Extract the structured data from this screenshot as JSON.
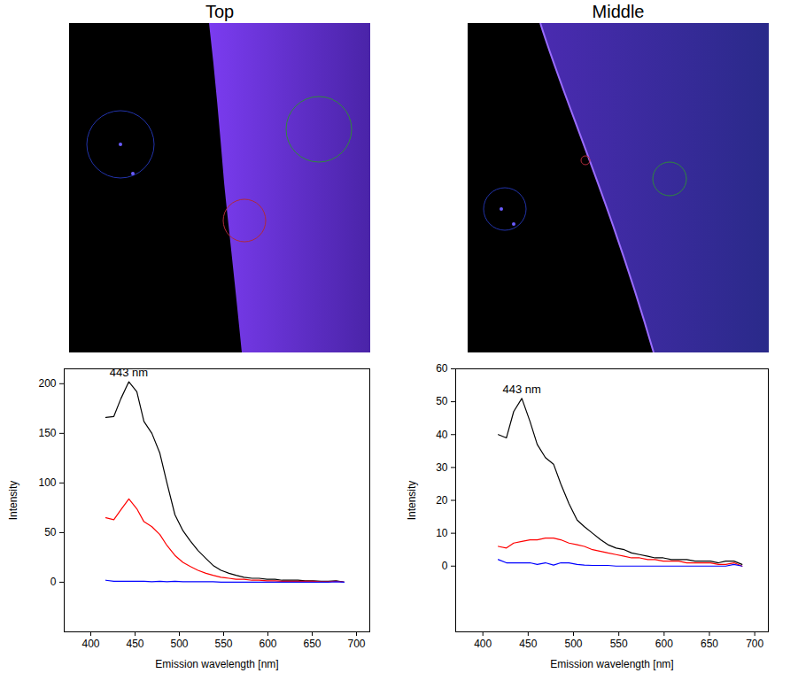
{
  "chart_data": [
    {
      "type": "line",
      "title": "Top",
      "xlabel": "Emission wavelength [nm]",
      "ylabel": "Intensity",
      "x": [
        417,
        426,
        434,
        443,
        452,
        460,
        469,
        478,
        486,
        495,
        504,
        512,
        521,
        530,
        538,
        547,
        556,
        564,
        573,
        582,
        590,
        599,
        608,
        616,
        625,
        634,
        642,
        651,
        660,
        668,
        677,
        686
      ],
      "series": [
        {
          "color": "#000000",
          "values": [
            166,
            167,
            185,
            202,
            192,
            162,
            150,
            130,
            100,
            68,
            52,
            42,
            32,
            24,
            17,
            12,
            9,
            7,
            5,
            4,
            4,
            3,
            3,
            2,
            2,
            2,
            1.5,
            1.5,
            1,
            1,
            1.5,
            0
          ]
        },
        {
          "color": "#ff0000",
          "values": [
            65,
            63,
            73,
            84,
            74,
            61,
            56,
            48,
            37,
            27,
            20,
            16,
            12,
            9,
            7,
            5,
            4,
            3,
            3,
            2,
            2,
            1.5,
            1.5,
            1,
            1,
            1,
            1,
            1,
            0.5,
            0.5,
            1,
            0
          ]
        },
        {
          "color": "#0000ff",
          "values": [
            2,
            1,
            1,
            1,
            1,
            1,
            0.5,
            1,
            0.5,
            1,
            0.5,
            0.5,
            0.5,
            0.5,
            0.5,
            0,
            0,
            0,
            0,
            0,
            0,
            0,
            0,
            0,
            0,
            0,
            0,
            0,
            0,
            0,
            0.5,
            0
          ]
        }
      ],
      "xlim": [
        370,
        715
      ],
      "xticks": [
        400,
        450,
        500,
        550,
        600,
        650,
        700
      ],
      "ylim": [
        -50,
        215
      ],
      "yticks": [
        0,
        50,
        100,
        150,
        200
      ],
      "annotations": [
        {
          "text": "443 nm",
          "x": 443
        }
      ]
    },
    {
      "type": "line",
      "title": "Middle",
      "xlabel": "Emission wavelength [nm]",
      "ylabel": "Intensity",
      "x": [
        417,
        426,
        434,
        443,
        452,
        460,
        469,
        478,
        486,
        495,
        504,
        512,
        521,
        530,
        538,
        547,
        556,
        564,
        573,
        582,
        590,
        599,
        608,
        616,
        625,
        634,
        642,
        651,
        660,
        668,
        677,
        686
      ],
      "series": [
        {
          "color": "#000000",
          "values": [
            40,
            39,
            47,
            51,
            44,
            37,
            33,
            31,
            25,
            19,
            14,
            12,
            10,
            8,
            6.5,
            5.5,
            5,
            4,
            3.5,
            3,
            2.5,
            2.5,
            2,
            2,
            2,
            1.5,
            1.5,
            1.5,
            1,
            1.5,
            1.5,
            0.5
          ]
        },
        {
          "color": "#ff0000",
          "values": [
            6,
            5.5,
            7,
            7.5,
            8,
            8,
            8.5,
            8.5,
            8,
            7,
            6.5,
            6,
            5,
            4.5,
            4,
            3.5,
            3,
            2.5,
            2.5,
            2,
            2,
            1.5,
            1.5,
            1.5,
            1,
            1,
            1,
            1,
            0.5,
            0.5,
            1,
            0
          ]
        },
        {
          "color": "#0000ff",
          "values": [
            2,
            1,
            1,
            1,
            1,
            0.5,
            1,
            0.3,
            1,
            1,
            0.5,
            0.3,
            0.2,
            0.2,
            0.2,
            0,
            0,
            0,
            0,
            0,
            0,
            0,
            0,
            0,
            0,
            0,
            0,
            0,
            0,
            0,
            0.5,
            0
          ]
        }
      ],
      "xlim": [
        370,
        715
      ],
      "xticks": [
        400,
        450,
        500,
        550,
        600,
        650,
        700
      ],
      "ylim": [
        -20,
        60
      ],
      "yticks": [
        0,
        10,
        20,
        30,
        40,
        50,
        60
      ],
      "annotations": [
        {
          "text": "443 nm",
          "x": 443
        }
      ]
    }
  ]
}
